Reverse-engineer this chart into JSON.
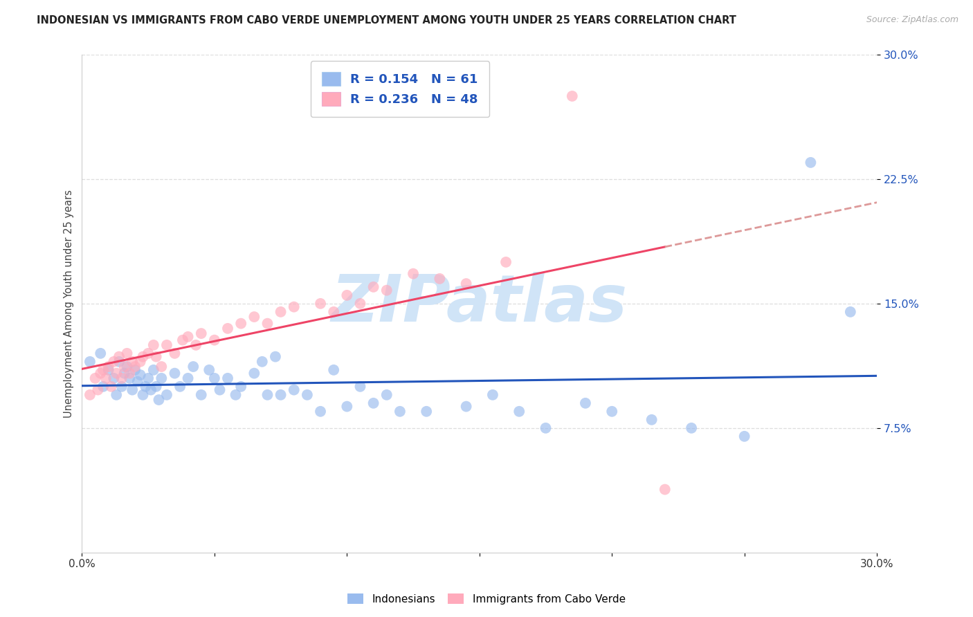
{
  "title": "INDONESIAN VS IMMIGRANTS FROM CABO VERDE UNEMPLOYMENT AMONG YOUTH UNDER 25 YEARS CORRELATION CHART",
  "source": "Source: ZipAtlas.com",
  "ylabel": "Unemployment Among Youth under 25 years",
  "xlim": [
    0.0,
    0.3
  ],
  "ylim": [
    0.0,
    0.3
  ],
  "ytick_vals": [
    0.075,
    0.15,
    0.225,
    0.3
  ],
  "ytick_labels": [
    "7.5%",
    "15.0%",
    "22.5%",
    "30.0%"
  ],
  "xtick_vals": [
    0.0,
    0.05,
    0.1,
    0.15,
    0.2,
    0.25,
    0.3
  ],
  "xtick_labels": [
    "0.0%",
    "",
    "",
    "",
    "",
    "",
    "30.0%"
  ],
  "legend1_r": "0.154",
  "legend1_n": "61",
  "legend2_r": "0.236",
  "legend2_n": "48",
  "blue_scatter_color": "#99BBEE",
  "pink_scatter_color": "#FFAABB",
  "blue_line_color": "#2255BB",
  "pink_line_color": "#EE4466",
  "pink_dash_color": "#DD9999",
  "watermark": "ZIPatlas",
  "watermark_color": "#D0E4F7",
  "indonesians_x": [
    0.003,
    0.007,
    0.008,
    0.01,
    0.012,
    0.013,
    0.014,
    0.015,
    0.016,
    0.017,
    0.018,
    0.019,
    0.02,
    0.021,
    0.022,
    0.023,
    0.024,
    0.025,
    0.026,
    0.027,
    0.028,
    0.029,
    0.03,
    0.032,
    0.035,
    0.037,
    0.04,
    0.042,
    0.045,
    0.048,
    0.05,
    0.052,
    0.055,
    0.058,
    0.06,
    0.065,
    0.068,
    0.07,
    0.073,
    0.075,
    0.08,
    0.085,
    0.09,
    0.095,
    0.1,
    0.105,
    0.11,
    0.115,
    0.12,
    0.13,
    0.145,
    0.155,
    0.165,
    0.175,
    0.19,
    0.2,
    0.215,
    0.23,
    0.25,
    0.275,
    0.29
  ],
  "indonesians_y": [
    0.115,
    0.12,
    0.1,
    0.11,
    0.105,
    0.095,
    0.115,
    0.1,
    0.108,
    0.112,
    0.105,
    0.098,
    0.11,
    0.103,
    0.107,
    0.095,
    0.1,
    0.105,
    0.098,
    0.11,
    0.1,
    0.092,
    0.105,
    0.095,
    0.108,
    0.1,
    0.105,
    0.112,
    0.095,
    0.11,
    0.105,
    0.098,
    0.105,
    0.095,
    0.1,
    0.108,
    0.115,
    0.095,
    0.118,
    0.095,
    0.098,
    0.095,
    0.085,
    0.11,
    0.088,
    0.1,
    0.09,
    0.095,
    0.085,
    0.085,
    0.088,
    0.095,
    0.085,
    0.075,
    0.09,
    0.085,
    0.08,
    0.075,
    0.07,
    0.235,
    0.145
  ],
  "caboverde_x": [
    0.003,
    0.005,
    0.006,
    0.007,
    0.008,
    0.009,
    0.01,
    0.011,
    0.012,
    0.013,
    0.014,
    0.015,
    0.016,
    0.017,
    0.018,
    0.019,
    0.02,
    0.022,
    0.023,
    0.025,
    0.027,
    0.028,
    0.03,
    0.032,
    0.035,
    0.038,
    0.04,
    0.043,
    0.045,
    0.05,
    0.055,
    0.06,
    0.065,
    0.07,
    0.075,
    0.08,
    0.09,
    0.095,
    0.1,
    0.105,
    0.11,
    0.115,
    0.125,
    0.135,
    0.145,
    0.16,
    0.185,
    0.22
  ],
  "caboverde_y": [
    0.095,
    0.105,
    0.098,
    0.108,
    0.11,
    0.105,
    0.112,
    0.1,
    0.115,
    0.108,
    0.118,
    0.105,
    0.112,
    0.12,
    0.108,
    0.115,
    0.112,
    0.115,
    0.118,
    0.12,
    0.125,
    0.118,
    0.112,
    0.125,
    0.12,
    0.128,
    0.13,
    0.125,
    0.132,
    0.128,
    0.135,
    0.138,
    0.142,
    0.138,
    0.145,
    0.148,
    0.15,
    0.145,
    0.155,
    0.15,
    0.16,
    0.158,
    0.168,
    0.165,
    0.162,
    0.175,
    0.275,
    0.038
  ]
}
